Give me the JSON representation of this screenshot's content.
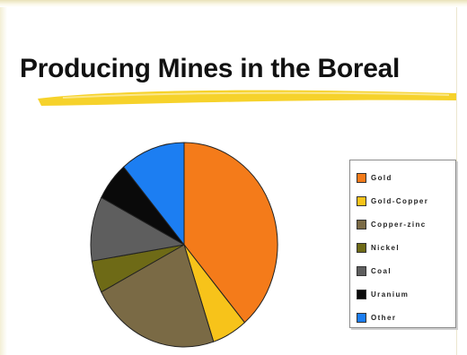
{
  "slide": {
    "title": "Producing Mines in the Boreal",
    "swoosh_color": "#f5d020"
  },
  "chart_data": {
    "type": "pie",
    "title": "",
    "legend_position": "right",
    "categories": [
      "Gold",
      "Gold-Copper",
      "Copper-zinc",
      "Nickel",
      "Coal",
      "Uranium",
      "Other"
    ],
    "values": [
      38,
      6,
      22,
      5,
      10,
      6,
      11
    ],
    "colors": [
      "#f47b1a",
      "#f7c31a",
      "#7a6a45",
      "#6e6a16",
      "#5e5e5e",
      "#0a0a0a",
      "#1c7ef2"
    ],
    "legend": {
      "labels": [
        "Gold",
        "Gold-Copper",
        "Copper-zinc",
        "Nickel",
        "Coal",
        "Uranium",
        "Other"
      ]
    }
  }
}
